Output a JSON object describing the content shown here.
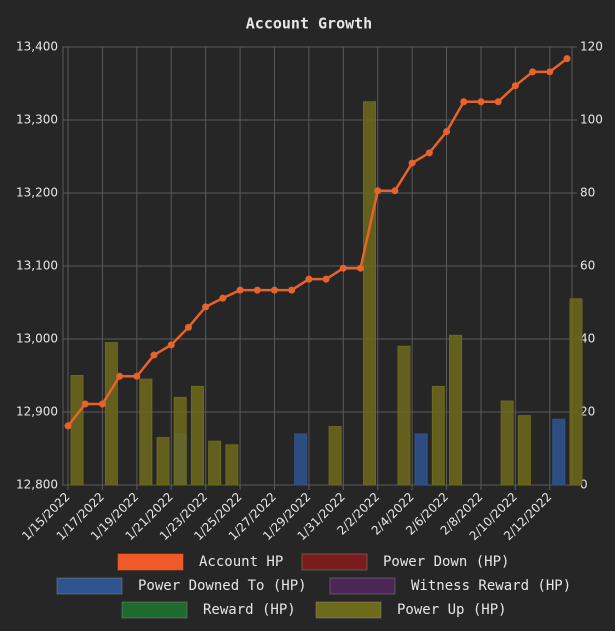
{
  "chart_data": {
    "type": "bar",
    "title": "Account Growth",
    "categories": [
      "1/15/2022",
      null,
      "1/17/2022",
      null,
      "1/19/2022",
      null,
      "1/21/2022",
      null,
      "1/23/2022",
      null,
      "1/25/2022",
      null,
      "1/27/2022",
      null,
      "1/29/2022",
      null,
      "1/31/2022",
      null,
      "2/2/2022",
      null,
      "2/4/2022",
      null,
      "2/6/2022",
      null,
      "2/8/2022",
      null,
      "2/10/2022",
      null,
      "2/12/2022",
      null
    ],
    "series": [
      {
        "name": "Account HP",
        "type": "line",
        "color": "#e8622c",
        "axis": "y",
        "values": [
          12881,
          12911,
          12911,
          12949,
          12949,
          12978,
          12992,
          13016,
          13044,
          13056,
          13067,
          13067,
          13067,
          13067,
          13082,
          13082,
          13097,
          13097,
          13203,
          13203,
          13241,
          13255,
          13284,
          13325,
          13325,
          13325,
          13347,
          13366,
          13366,
          13384
        ]
      },
      {
        "name": "Power Down (HP)",
        "color": "#7a1c1c",
        "axis": "y2",
        "values": [
          null,
          null,
          null,
          null,
          null,
          null,
          null,
          null,
          null,
          null,
          null,
          null,
          null,
          null,
          null,
          null,
          null,
          null,
          null,
          null,
          null,
          null,
          null,
          null,
          null,
          null,
          null,
          null,
          null,
          null
        ]
      },
      {
        "name": "Power Downed To (HP)",
        "color": "#2f5590",
        "axis": "y2",
        "values": [
          null,
          null,
          null,
          null,
          null,
          null,
          14,
          null,
          null,
          null,
          null,
          null,
          null,
          14,
          null,
          null,
          null,
          null,
          null,
          null,
          14,
          null,
          null,
          null,
          null,
          null,
          null,
          null,
          18,
          null
        ]
      },
      {
        "name": "Witness Reward (HP)",
        "color": "#4b2757",
        "axis": "y2",
        "values": [
          null,
          null,
          null,
          null,
          null,
          null,
          null,
          null,
          null,
          null,
          null,
          null,
          null,
          null,
          null,
          null,
          null,
          null,
          null,
          null,
          null,
          null,
          null,
          null,
          null,
          null,
          null,
          null,
          null,
          null
        ]
      },
      {
        "name": "Reward (HP)",
        "color": "#1e6b2d",
        "axis": "y2",
        "values": [
          null,
          null,
          null,
          null,
          null,
          null,
          null,
          null,
          null,
          null,
          null,
          null,
          null,
          null,
          null,
          null,
          null,
          null,
          null,
          null,
          null,
          null,
          null,
          null,
          null,
          null,
          null,
          null,
          null,
          null
        ]
      },
      {
        "name": "Power Up (HP)",
        "color": "#6e6a1c",
        "axis": "y2",
        "values": [
          30,
          null,
          39,
          null,
          29,
          13,
          24,
          27,
          12,
          11,
          null,
          null,
          null,
          null,
          null,
          16,
          null,
          105,
          null,
          38,
          null,
          27,
          41,
          null,
          null,
          23,
          19,
          null,
          null,
          51
        ]
      }
    ],
    "ylim": [
      12800,
      13400
    ],
    "yticks": [
      {
        "value": 12800,
        "label": "12,800"
      },
      {
        "value": 12900,
        "label": "12,900"
      },
      {
        "value": 13000,
        "label": "13,000"
      },
      {
        "value": 13100,
        "label": "13,100"
      },
      {
        "value": 13200,
        "label": "13,200"
      },
      {
        "value": 13300,
        "label": "13,300"
      },
      {
        "value": 13400,
        "label": "13,400"
      }
    ],
    "y2lim": [
      0,
      120
    ],
    "y2ticks": [
      0,
      20,
      40,
      60,
      80,
      100,
      120
    ],
    "grid": true,
    "legend": "bottom"
  }
}
